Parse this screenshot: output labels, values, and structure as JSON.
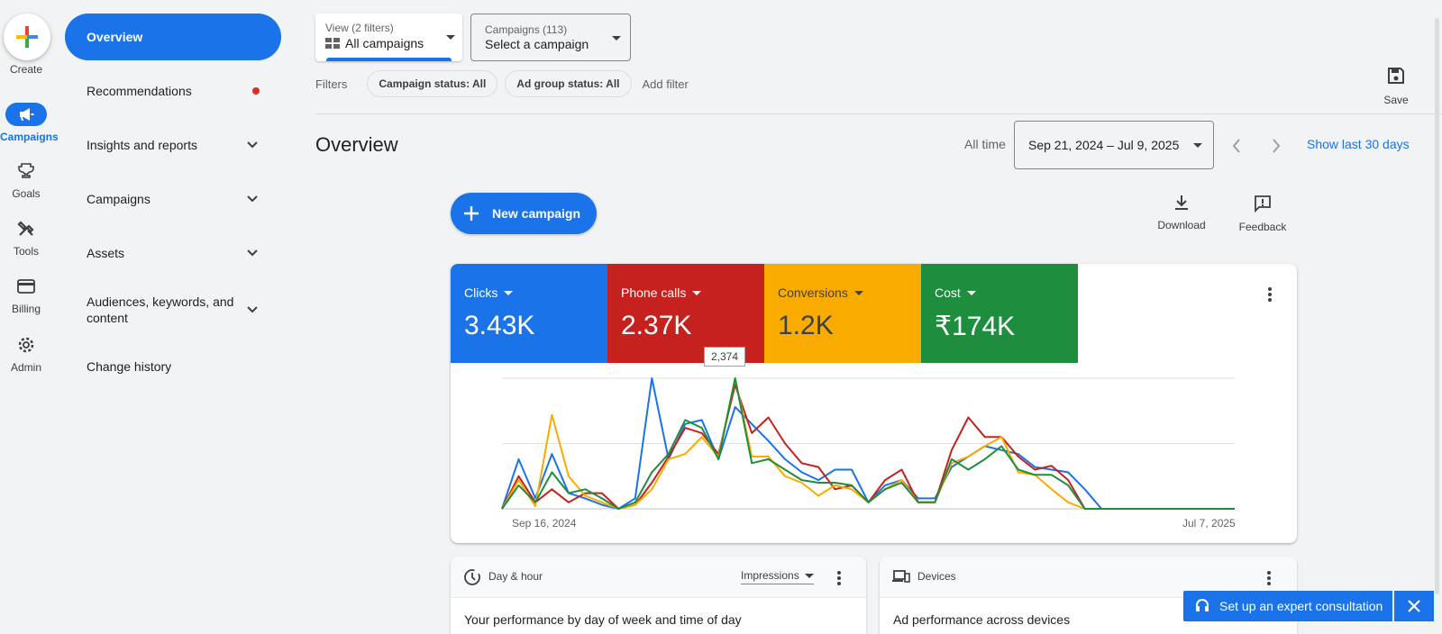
{
  "rail": {
    "create_label": "Create",
    "items": [
      {
        "label": "Campaigns",
        "icon": "megaphone-icon",
        "active": true
      },
      {
        "label": "Goals",
        "icon": "trophy-icon"
      },
      {
        "label": "Tools",
        "icon": "tools-icon"
      },
      {
        "label": "Billing",
        "icon": "credit-card-icon"
      },
      {
        "label": "Admin",
        "icon": "gear-icon"
      }
    ]
  },
  "nav": {
    "items": [
      {
        "label": "Overview",
        "active": true
      },
      {
        "label": "Recommendations",
        "badge": "red-dot"
      },
      {
        "label": "Insights and reports",
        "expandable": true
      },
      {
        "label": "Campaigns",
        "expandable": true
      },
      {
        "label": "Assets",
        "expandable": true
      },
      {
        "label": "Audiences, keywords, and content",
        "expandable": true
      },
      {
        "label": "Change history"
      }
    ]
  },
  "topbar": {
    "view_select": {
      "label": "View (2 filters)",
      "value": "All campaigns"
    },
    "campaign_select": {
      "label": "Campaigns (113)",
      "value": "Select a campaign"
    },
    "filters_label": "Filters",
    "chips": [
      "Campaign status: All",
      "Ad group status: All"
    ],
    "add_filter": "Add filter",
    "save_label": "Save"
  },
  "header": {
    "title": "Overview",
    "all_time": "All time",
    "date_range": "Sep 21, 2024 – Jul 9, 2025",
    "show_last": "Show last 30 days"
  },
  "actions": {
    "new_campaign": "New campaign",
    "download": "Download",
    "feedback": "Feedback"
  },
  "metrics": [
    {
      "name": "Clicks",
      "value": "3.43K",
      "color": "#1a73e8"
    },
    {
      "name": "Phone calls",
      "value": "2.37K",
      "color": "#c5221f"
    },
    {
      "name": "Conversions",
      "value": "1.2K",
      "color": "#f9ab00"
    },
    {
      "name": "Cost",
      "value": "₹174K",
      "color": "#1e8e3e"
    }
  ],
  "chart_data": {
    "type": "line",
    "tooltip": "2,374",
    "x_start_label": "Sep 16, 2024",
    "x_end_label": "Jul 7, 2025",
    "grid": true,
    "ylim": [
      0,
      100
    ],
    "series": [
      {
        "name": "Clicks",
        "color": "#1a73e8",
        "values": [
          0,
          38,
          8,
          42,
          12,
          8,
          3,
          0,
          8,
          100,
          38,
          65,
          68,
          38,
          78,
          65,
          52,
          38,
          28,
          22,
          30,
          30,
          5,
          18,
          22,
          8,
          8,
          32,
          40,
          48,
          45,
          42,
          32,
          30,
          28,
          15,
          0,
          0,
          0,
          0,
          0,
          0,
          0,
          0,
          0
        ]
      },
      {
        "name": "Phone calls",
        "color": "#c5221f",
        "values": [
          0,
          25,
          5,
          15,
          5,
          12,
          12,
          0,
          3,
          20,
          40,
          62,
          58,
          42,
          95,
          58,
          70,
          50,
          35,
          32,
          15,
          18,
          5,
          22,
          30,
          5,
          5,
          45,
          70,
          55,
          55,
          40,
          30,
          33,
          22,
          0,
          0,
          0,
          0,
          0,
          0,
          0,
          0,
          0,
          0
        ]
      },
      {
        "name": "Conversions",
        "color": "#f9ab00",
        "values": [
          0,
          22,
          2,
          72,
          25,
          10,
          5,
          0,
          3,
          15,
          38,
          42,
          55,
          40,
          100,
          40,
          40,
          25,
          20,
          10,
          18,
          15,
          5,
          15,
          22,
          5,
          5,
          35,
          40,
          48,
          55,
          28,
          26,
          15,
          5,
          0,
          0,
          0,
          0,
          0,
          0,
          0,
          0,
          0,
          0
        ]
      },
      {
        "name": "Cost",
        "color": "#1e8e3e",
        "values": [
          0,
          18,
          5,
          28,
          12,
          15,
          8,
          0,
          5,
          28,
          42,
          68,
          62,
          38,
          100,
          35,
          38,
          30,
          22,
          20,
          20,
          18,
          5,
          15,
          20,
          5,
          5,
          38,
          30,
          38,
          48,
          30,
          26,
          26,
          18,
          0,
          0,
          0,
          0,
          0,
          0,
          0,
          0,
          0,
          0
        ]
      }
    ]
  },
  "cards": {
    "dayhour": {
      "title": "Day & hour",
      "select": "Impressions",
      "body": "Your performance by day of week and time of day"
    },
    "devices": {
      "title": "Devices",
      "body": "Ad performance across devices"
    }
  },
  "consult": {
    "label": "Set up an expert consultation"
  }
}
